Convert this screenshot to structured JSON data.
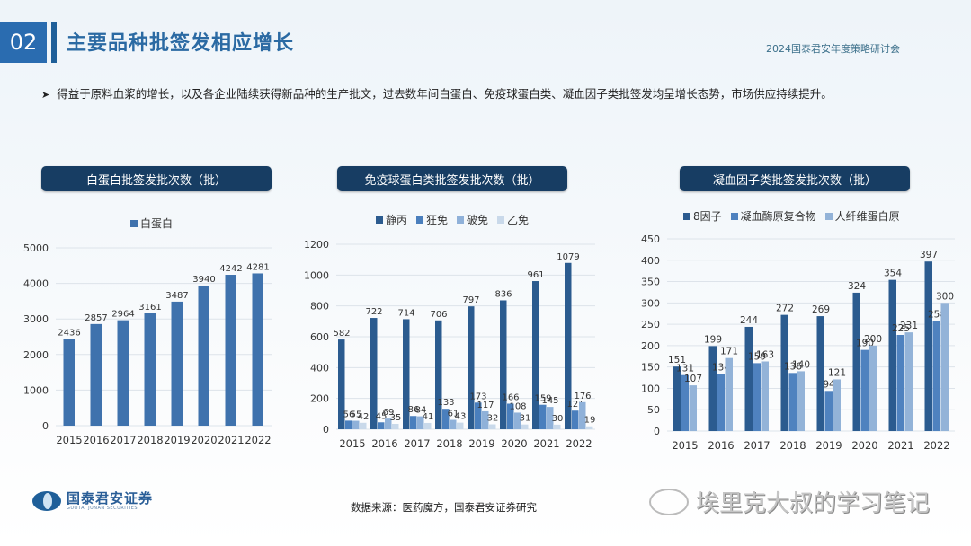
{
  "header": {
    "section_number": "02",
    "title": "主要品种批签发相应增长",
    "conference": "2024国泰君安年度策略研讨会"
  },
  "bullet": "得益于原料血浆的增长，以及各企业陆续获得新品种的生产批文，过去数年间白蛋白、免疫球蛋白类、凝血因子类批签发均呈增长态势，市场供应持续提升。",
  "footer": {
    "logo_cn": "国泰君安证券",
    "logo_en": "GUOTAI JUNAN SECURITIES",
    "source": "数据来源：医药魔方，国泰君安证券研究",
    "watermark": "埃里克大叔的学习笔记"
  },
  "chart_data": [
    {
      "type": "bar",
      "title": "白蛋白批签发批次数（批）",
      "categories": [
        "2015",
        "2016",
        "2017",
        "2018",
        "2019",
        "2020",
        "2021",
        "2022"
      ],
      "series": [
        {
          "name": "白蛋白",
          "color": "#3f72ad",
          "values": [
            2436,
            2857,
            2964,
            3161,
            3487,
            3940,
            4242,
            4281
          ]
        }
      ],
      "yticks": [
        0,
        1000,
        2000,
        3000,
        4000,
        5000
      ],
      "ylim": [
        0,
        5000
      ],
      "xlabel": "",
      "ylabel": "",
      "grid": true,
      "legend_position": "top"
    },
    {
      "type": "bar",
      "title": "免疫球蛋白类批签发批次数（批）",
      "categories": [
        "2015",
        "2016",
        "2017",
        "2018",
        "2019",
        "2020",
        "2021",
        "2022"
      ],
      "series": [
        {
          "name": "静丙",
          "color": "#2b5b8f",
          "values": [
            582,
            722,
            714,
            706,
            797,
            836,
            961,
            1079
          ]
        },
        {
          "name": "狂免",
          "color": "#4a7fbd",
          "values": [
            56,
            45,
            86,
            133,
            173,
            166,
            159,
            121
          ]
        },
        {
          "name": "破免",
          "color": "#8fb1d9",
          "values": [
            55,
            69,
            84,
            61,
            117,
            108,
            145,
            176
          ]
        },
        {
          "name": "乙免",
          "color": "#c9d9ea",
          "values": [
            42,
            35,
            41,
            43,
            32,
            31,
            30,
            19
          ]
        }
      ],
      "yticks": [
        0,
        200,
        400,
        600,
        800,
        1000,
        1200
      ],
      "ylim": [
        0,
        1200
      ],
      "xlabel": "",
      "ylabel": "",
      "grid": true,
      "legend_position": "top"
    },
    {
      "type": "bar",
      "title": "凝血因子类批签发批次数（批）",
      "categories": [
        "2015",
        "2016",
        "2017",
        "2018",
        "2019",
        "2020",
        "2021",
        "2022"
      ],
      "series": [
        {
          "name": "8因子",
          "color": "#2b5b8f",
          "values": [
            151,
            199,
            244,
            272,
            269,
            324,
            354,
            397
          ]
        },
        {
          "name": "凝血酶原复合物",
          "color": "#4f82bf",
          "values": [
            131,
            134,
            159,
            136,
            94,
            190,
            225,
            258
          ]
        },
        {
          "name": "人纤维蛋白原",
          "color": "#93b3d8",
          "values": [
            107,
            171,
            163,
            140,
            121,
            200,
            231,
            300
          ]
        }
      ],
      "yticks": [
        0,
        50,
        100,
        150,
        200,
        250,
        300,
        350,
        400,
        450
      ],
      "ylim": [
        0,
        450
      ],
      "xlabel": "",
      "ylabel": "",
      "grid": true,
      "legend_position": "top"
    }
  ]
}
